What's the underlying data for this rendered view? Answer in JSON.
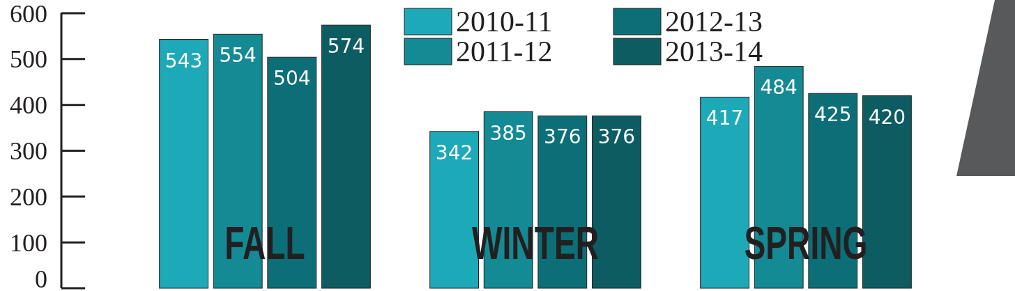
{
  "chart_data": {
    "type": "bar",
    "categories": [
      "FALL",
      "WINTER",
      "SPRING"
    ],
    "series": [
      {
        "name": "2010-11",
        "color": "#1ea9b8",
        "values": [
          543,
          342,
          417
        ]
      },
      {
        "name": "2011-12",
        "color": "#138a94",
        "values": [
          554,
          385,
          484
        ]
      },
      {
        "name": "2012-13",
        "color": "#0c6f78",
        "values": [
          504,
          376,
          425
        ]
      },
      {
        "name": "2013-14",
        "color": "#0c5c62",
        "values": [
          574,
          376,
          420
        ]
      }
    ],
    "ylim": [
      0,
      600
    ],
    "yticks": [
      0,
      100,
      200,
      300,
      400,
      500,
      600
    ],
    "data_labels": true,
    "legend": "top",
    "grid": false
  }
}
